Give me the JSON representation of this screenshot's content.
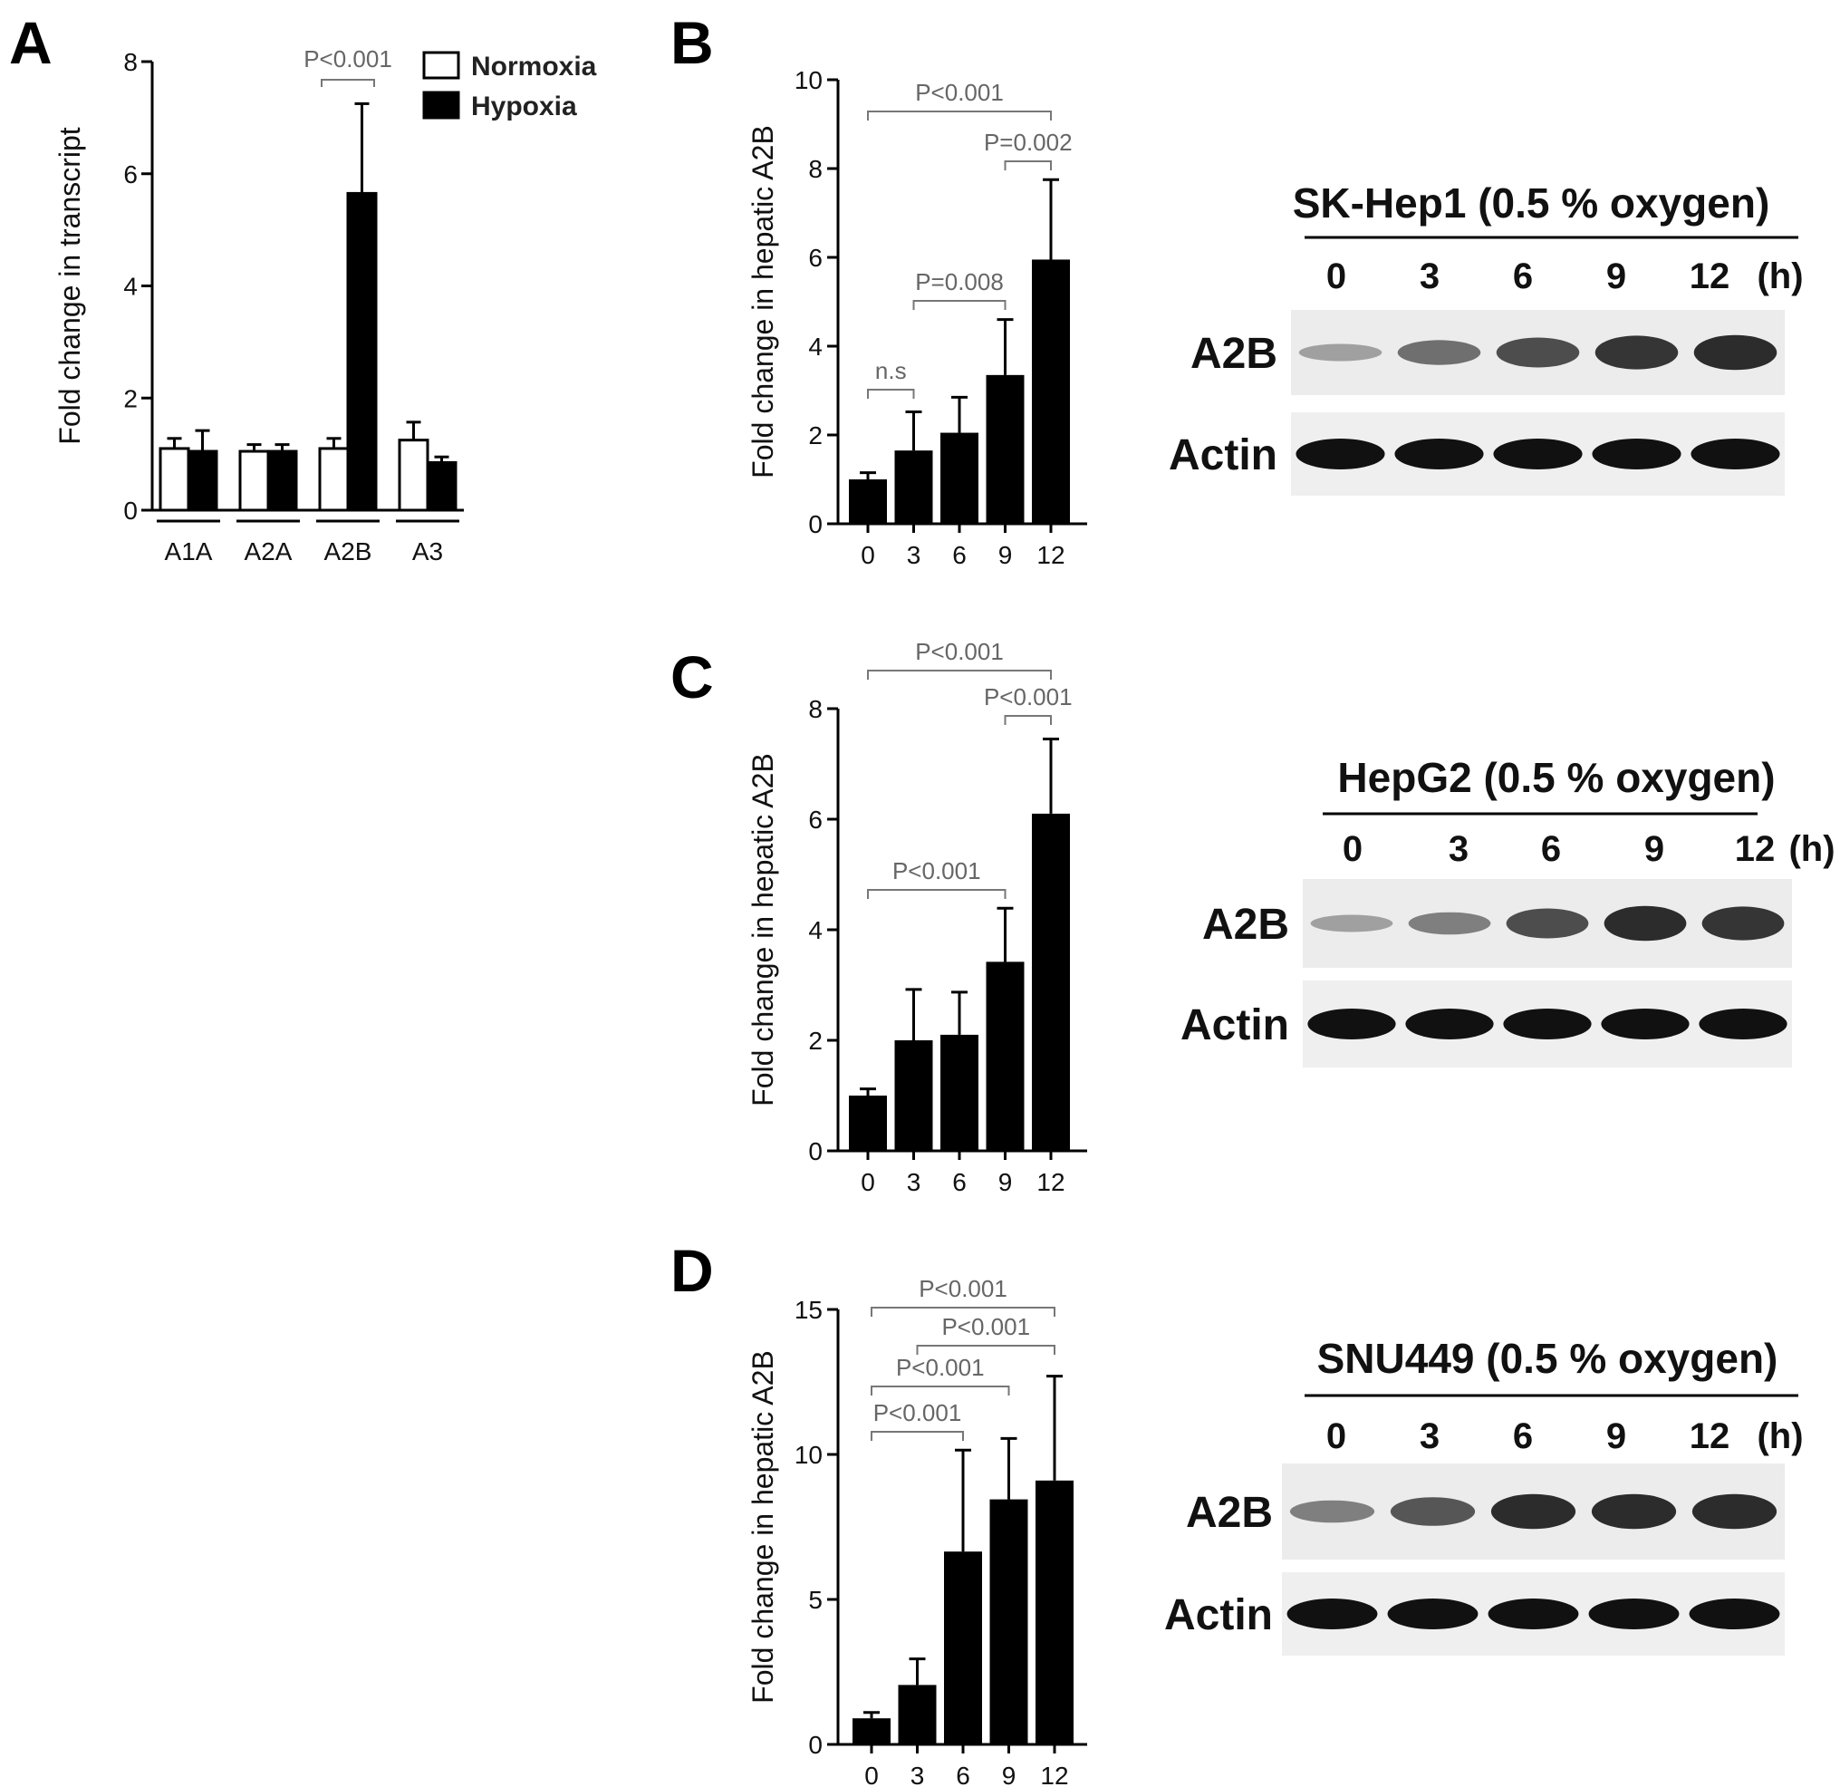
{
  "panels": {
    "A": "A",
    "B": "B",
    "C": "C",
    "D": "D"
  },
  "colors": {
    "normoxia": "#ffffff",
    "hypoxia": "#000000",
    "bar": "#000000"
  },
  "chart_data": [
    {
      "id": "A",
      "type": "bar",
      "title": "",
      "xlabel": "",
      "ylabel": "Fold change in transcript",
      "ylim": [
        0,
        8
      ],
      "yticks": [
        "0",
        "2",
        "4",
        "6",
        "8"
      ],
      "categories": [
        "A1A",
        "A2A",
        "A2B",
        "A3"
      ],
      "series": [
        {
          "name": "Normoxia",
          "values": [
            1.1,
            1.05,
            1.1,
            1.25
          ],
          "errors": [
            0.18,
            0.12,
            0.18,
            0.32
          ]
        },
        {
          "name": "Hypoxia",
          "values": [
            1.05,
            1.05,
            5.65,
            0.85
          ],
          "errors": [
            0.37,
            0.12,
            1.6,
            0.1
          ]
        }
      ],
      "legend": "top-right",
      "annotations": [
        {
          "text": "P<0.001",
          "category": "A2B"
        }
      ]
    },
    {
      "id": "B",
      "type": "bar",
      "title": "",
      "xlabel": "",
      "ylabel": "Fold change in hepatic A2B",
      "ylim": [
        0,
        10
      ],
      "yticks": [
        "0",
        "2",
        "4",
        "6",
        "8",
        "10"
      ],
      "categories": [
        "0",
        "3",
        "6",
        "9",
        "12"
      ],
      "values": [
        1.0,
        1.65,
        2.05,
        3.35,
        5.95
      ],
      "errors": [
        0.15,
        0.87,
        0.8,
        1.25,
        1.8
      ],
      "annotations": [
        {
          "text": "n.s",
          "from": "0",
          "to": "3"
        },
        {
          "text": "P=0.008",
          "from": "3",
          "to": "9"
        },
        {
          "text": "P=0.002",
          "from": "9",
          "to": "12"
        },
        {
          "text": "P<0.001",
          "from": "0",
          "to": "12"
        }
      ]
    },
    {
      "id": "C",
      "type": "bar",
      "title": "",
      "xlabel": "",
      "ylabel": "Fold change in hepatic A2B",
      "ylim": [
        0,
        8
      ],
      "yticks": [
        "0",
        "2",
        "4",
        "6",
        "8"
      ],
      "categories": [
        "0",
        "3",
        "6",
        "9",
        "12"
      ],
      "values": [
        1.0,
        2.0,
        2.1,
        3.42,
        6.1
      ],
      "errors": [
        0.12,
        0.92,
        0.77,
        0.97,
        1.35
      ],
      "annotations": [
        {
          "text": "P<0.001",
          "from": "0",
          "to": "9"
        },
        {
          "text": "P<0.001",
          "from": "9",
          "to": "12"
        },
        {
          "text": "P<0.001",
          "from": "0",
          "to": "12"
        }
      ]
    },
    {
      "id": "D",
      "type": "bar",
      "title": "",
      "xlabel": "",
      "ylabel": "Fold change in hepatic A2B",
      "ylim": [
        0,
        15
      ],
      "yticks": [
        "0",
        "5",
        "10",
        "15"
      ],
      "categories": [
        "0",
        "3",
        "6",
        "9",
        "12"
      ],
      "values": [
        0.9,
        2.05,
        6.65,
        8.45,
        9.1
      ],
      "errors": [
        0.2,
        0.9,
        3.5,
        2.1,
        3.6
      ],
      "annotations": [
        {
          "text": "P<0.001",
          "from": "0",
          "to": "6"
        },
        {
          "text": "P<0.001",
          "from": "0",
          "to": "9"
        },
        {
          "text": "P<0.001",
          "from": "3",
          "to": "12"
        },
        {
          "text": "P<0.001",
          "from": "0",
          "to": "12"
        }
      ]
    }
  ],
  "blots": [
    {
      "id": "B",
      "title": "SK-Hep1 (0.5 % oxygen)",
      "lanes": [
        "0",
        "3",
        "6",
        "9",
        "12"
      ],
      "unit": "(h)",
      "rows": [
        "A2B",
        "Actin"
      ],
      "a2b_intensity": [
        0.25,
        0.55,
        0.75,
        0.9,
        0.95
      ]
    },
    {
      "id": "C",
      "title": "HepG2 (0.5 % oxygen)",
      "lanes": [
        "0",
        "3",
        "6",
        "9",
        "12"
      ],
      "unit": "(h)",
      "rows": [
        "A2B",
        "Actin"
      ],
      "a2b_intensity": [
        0.25,
        0.45,
        0.75,
        0.95,
        0.9
      ]
    },
    {
      "id": "D",
      "title": "SNU449 (0.5 % oxygen)",
      "lanes": [
        "0",
        "3",
        "6",
        "9",
        "12"
      ],
      "unit": "(h)",
      "rows": [
        "A2B",
        "Actin"
      ],
      "a2b_intensity": [
        0.45,
        0.7,
        0.95,
        0.95,
        0.95
      ]
    }
  ]
}
